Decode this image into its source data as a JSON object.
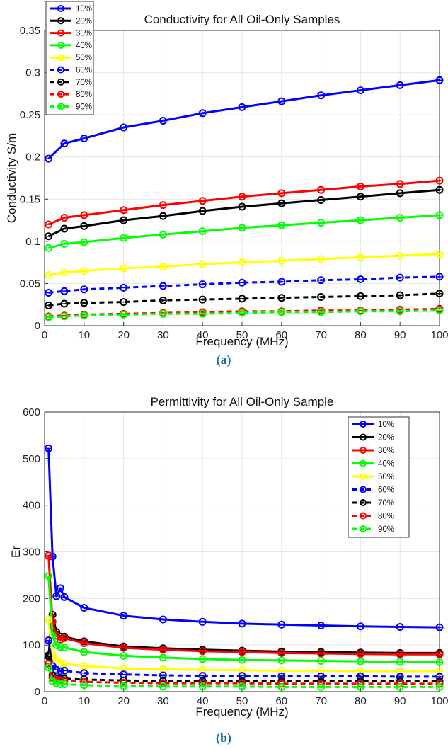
{
  "captions": [
    "(a)",
    "(b)"
  ],
  "chart_data": [
    {
      "type": "line",
      "title": "Conductivity for All Oil-Only Samples",
      "xlabel": "Frequency (MHz)",
      "ylabel": "Conductivity S/m",
      "xlim": [
        0,
        100
      ],
      "ylim": [
        0,
        0.35
      ],
      "xticks": [
        0,
        10,
        20,
        30,
        40,
        50,
        60,
        70,
        80,
        90,
        100
      ],
      "yticks": [
        0,
        0.05,
        0.1,
        0.15,
        0.2,
        0.25,
        0.3,
        0.35
      ],
      "yticklabels": [
        "0",
        "0.05",
        "0.1",
        "0.15",
        "0.2",
        "0.25",
        "0.3",
        "0.35"
      ],
      "grid": true,
      "legend": "top-left",
      "x": [
        1,
        5,
        10,
        20,
        30,
        40,
        50,
        60,
        70,
        80,
        90,
        100
      ],
      "series": [
        {
          "name": "10%",
          "color": "#0000ff",
          "dash": false,
          "values": [
            0.198,
            0.216,
            0.222,
            0.235,
            0.243,
            0.252,
            0.259,
            0.266,
            0.273,
            0.279,
            0.285,
            0.291
          ]
        },
        {
          "name": "20%",
          "color": "#000000",
          "dash": false,
          "values": [
            0.106,
            0.115,
            0.118,
            0.125,
            0.13,
            0.136,
            0.141,
            0.145,
            0.149,
            0.153,
            0.157,
            0.161
          ]
        },
        {
          "name": "30%",
          "color": "#ff0000",
          "dash": false,
          "values": [
            0.12,
            0.128,
            0.131,
            0.137,
            0.143,
            0.148,
            0.153,
            0.157,
            0.161,
            0.165,
            0.168,
            0.172
          ]
        },
        {
          "name": "40%",
          "color": "#00ff00",
          "dash": false,
          "values": [
            0.092,
            0.097,
            0.099,
            0.104,
            0.108,
            0.112,
            0.116,
            0.119,
            0.122,
            0.125,
            0.128,
            0.131
          ]
        },
        {
          "name": "50%",
          "color": "#ffff00",
          "dash": false,
          "values": [
            0.06,
            0.063,
            0.065,
            0.068,
            0.07,
            0.073,
            0.075,
            0.077,
            0.079,
            0.081,
            0.083,
            0.085
          ]
        },
        {
          "name": "60%",
          "color": "#0000ff",
          "dash": true,
          "values": [
            0.039,
            0.041,
            0.043,
            0.045,
            0.047,
            0.049,
            0.051,
            0.052,
            0.054,
            0.055,
            0.057,
            0.058
          ]
        },
        {
          "name": "70%",
          "color": "#000000",
          "dash": true,
          "values": [
            0.024,
            0.026,
            0.027,
            0.028,
            0.03,
            0.031,
            0.032,
            0.033,
            0.034,
            0.035,
            0.036,
            0.038
          ]
        },
        {
          "name": "80%",
          "color": "#ff0000",
          "dash": true,
          "values": [
            0.011,
            0.012,
            0.013,
            0.014,
            0.015,
            0.016,
            0.017,
            0.017,
            0.018,
            0.018,
            0.019,
            0.02
          ]
        },
        {
          "name": "90%",
          "color": "#00ff00",
          "dash": true,
          "values": [
            0.01,
            0.011,
            0.012,
            0.013,
            0.014,
            0.014,
            0.015,
            0.016,
            0.016,
            0.017,
            0.017,
            0.018
          ]
        }
      ]
    },
    {
      "type": "line",
      "title": "Permittivity for All Oil-Only Sample",
      "xlabel": "Frequency (MHz)",
      "ylabel": "Er",
      "xlim": [
        0,
        100
      ],
      "ylim": [
        0,
        600
      ],
      "xticks": [
        0,
        10,
        20,
        30,
        40,
        50,
        60,
        70,
        80,
        90,
        100
      ],
      "yticks": [
        0,
        100,
        200,
        300,
        400,
        500,
        600
      ],
      "yticklabels": [
        "0",
        "100",
        "200",
        "300",
        "400",
        "500",
        "600"
      ],
      "grid": true,
      "legend": "top-right",
      "x": [
        1,
        2,
        3,
        4,
        5,
        10,
        20,
        30,
        40,
        50,
        60,
        70,
        80,
        90,
        100
      ],
      "series": [
        {
          "name": "10%",
          "color": "#0000ff",
          "dash": false,
          "values": [
            522,
            290,
            205,
            222,
            203,
            180,
            163,
            155,
            150,
            146,
            144,
            142,
            140,
            139,
            138
          ]
        },
        {
          "name": "20%",
          "color": "#000000",
          "dash": false,
          "values": [
            78,
            165,
            128,
            118,
            118,
            108,
            97,
            93,
            90,
            88,
            86,
            85,
            84,
            83,
            83
          ]
        },
        {
          "name": "30%",
          "color": "#ff0000",
          "dash": false,
          "values": [
            292,
            150,
            120,
            112,
            115,
            104,
            94,
            90,
            87,
            85,
            83,
            82,
            81,
            80,
            80
          ]
        },
        {
          "name": "40%",
          "color": "#00ff00",
          "dash": false,
          "values": [
            248,
            120,
            100,
            96,
            95,
            85,
            77,
            73,
            70,
            68,
            67,
            66,
            65,
            64,
            63
          ]
        },
        {
          "name": "50%",
          "color": "#ffff00",
          "dash": false,
          "values": [
            155,
            80,
            68,
            62,
            60,
            55,
            50,
            48,
            47,
            46,
            45,
            45,
            44,
            44,
            44
          ]
        },
        {
          "name": "60%",
          "color": "#0000ff",
          "dash": true,
          "values": [
            110,
            55,
            47,
            44,
            45,
            40,
            37,
            35,
            34,
            34,
            33,
            33,
            33,
            32,
            32
          ]
        },
        {
          "name": "70%",
          "color": "#000000",
          "dash": true,
          "values": [
            75,
            35,
            29,
            27,
            28,
            26,
            24,
            23,
            23,
            22,
            22,
            22,
            22,
            22,
            22
          ]
        },
        {
          "name": "80%",
          "color": "#ff0000",
          "dash": true,
          "values": [
            60,
            30,
            25,
            23,
            23,
            21,
            19,
            18,
            18,
            18,
            17,
            17,
            17,
            17,
            17
          ]
        },
        {
          "name": "90%",
          "color": "#00ff00",
          "dash": true,
          "values": [
            52,
            22,
            18,
            16,
            16,
            14,
            12,
            11,
            11,
            11,
            10,
            10,
            10,
            10,
            10
          ]
        }
      ]
    }
  ]
}
